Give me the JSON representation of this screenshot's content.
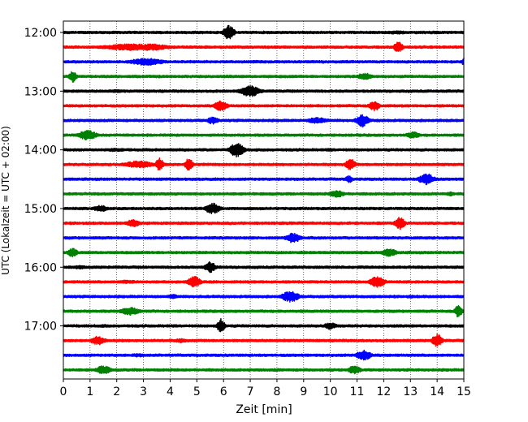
{
  "chart_data": {
    "type": "line",
    "title": "",
    "xlabel": "Zeit  [min]",
    "ylabel": "UTC (Lokalzeit = UTC + 02:00)",
    "xlim": [
      0,
      15
    ],
    "x_ticks": [
      "0",
      "1",
      "2",
      "3",
      "4",
      "5",
      "6",
      "7",
      "8",
      "9",
      "10",
      "11",
      "12",
      "13",
      "14",
      "15"
    ],
    "y_tick_labels": [
      "12:00",
      "13:00",
      "14:00",
      "15:00",
      "16:00",
      "17:00"
    ],
    "grid": "vertical dotted",
    "colors": [
      "#000000",
      "#ff0000",
      "#0000ff",
      "#008000"
    ],
    "traces": [
      {
        "start": "12:00",
        "bursts": [
          [
            6.2,
            0.22,
            1.0
          ],
          [
            12.5,
            0.5,
            0.25
          ],
          [
            13.9,
            0.5,
            0.2
          ]
        ]
      },
      {
        "start": "12:15",
        "bursts": [
          [
            2.5,
            1.2,
            0.45
          ],
          [
            3.3,
            0.8,
            0.45
          ],
          [
            12.55,
            0.18,
            0.75
          ]
        ]
      },
      {
        "start": "12:30",
        "bursts": [
          [
            3.1,
            0.7,
            0.5
          ],
          [
            7.2,
            0.5,
            0.2
          ],
          [
            15.0,
            0.08,
            0.6
          ]
        ]
      },
      {
        "start": "12:45",
        "bursts": [
          [
            0.35,
            0.15,
            0.8
          ],
          [
            11.3,
            0.3,
            0.5
          ]
        ]
      },
      {
        "start": "13:00",
        "bursts": [
          [
            7.0,
            0.4,
            0.75
          ],
          [
            2.0,
            0.6,
            0.2
          ]
        ]
      },
      {
        "start": "13:15",
        "bursts": [
          [
            5.9,
            0.25,
            0.75
          ],
          [
            11.65,
            0.2,
            0.75
          ]
        ]
      },
      {
        "start": "13:30",
        "bursts": [
          [
            5.6,
            0.25,
            0.5
          ],
          [
            9.5,
            0.4,
            0.45
          ],
          [
            11.2,
            0.25,
            0.9
          ]
        ]
      },
      {
        "start": "13:45",
        "bursts": [
          [
            0.9,
            0.35,
            0.7
          ],
          [
            13.1,
            0.3,
            0.45
          ]
        ]
      },
      {
        "start": "14:00",
        "bursts": [
          [
            6.5,
            0.28,
            1.0
          ],
          [
            2.0,
            0.5,
            0.25
          ],
          [
            10.0,
            0.4,
            0.2
          ]
        ]
      },
      {
        "start": "14:15",
        "bursts": [
          [
            2.8,
            0.6,
            0.5
          ],
          [
            3.6,
            0.15,
            0.9
          ],
          [
            4.7,
            0.15,
            0.9
          ],
          [
            10.75,
            0.2,
            0.8
          ]
        ]
      },
      {
        "start": "14:30",
        "bursts": [
          [
            10.7,
            0.15,
            0.5
          ],
          [
            13.6,
            0.3,
            0.8
          ]
        ]
      },
      {
        "start": "14:45",
        "bursts": [
          [
            10.25,
            0.3,
            0.5
          ],
          [
            14.5,
            0.2,
            0.3
          ]
        ]
      },
      {
        "start": "15:00",
        "bursts": [
          [
            1.4,
            0.3,
            0.45
          ],
          [
            5.6,
            0.3,
            0.75
          ]
        ]
      },
      {
        "start": "15:15",
        "bursts": [
          [
            2.6,
            0.3,
            0.5
          ],
          [
            12.6,
            0.2,
            0.85
          ]
        ]
      },
      {
        "start": "15:30",
        "bursts": [
          [
            8.6,
            0.3,
            0.7
          ],
          [
            2.0,
            0.4,
            0.15
          ]
        ]
      },
      {
        "start": "15:45",
        "bursts": [
          [
            0.35,
            0.2,
            0.6
          ],
          [
            12.2,
            0.3,
            0.55
          ],
          [
            9.0,
            0.4,
            0.2
          ]
        ]
      },
      {
        "start": "16:00",
        "bursts": [
          [
            5.5,
            0.22,
            0.75
          ],
          [
            0.6,
            0.3,
            0.25
          ]
        ]
      },
      {
        "start": "16:15",
        "bursts": [
          [
            4.9,
            0.25,
            0.8
          ],
          [
            11.75,
            0.3,
            0.8
          ],
          [
            2.4,
            0.5,
            0.25
          ]
        ]
      },
      {
        "start": "16:30",
        "bursts": [
          [
            8.5,
            0.35,
            0.75
          ],
          [
            4.1,
            0.25,
            0.3
          ],
          [
            13.0,
            0.3,
            0.2
          ]
        ]
      },
      {
        "start": "16:45",
        "bursts": [
          [
            2.5,
            0.4,
            0.55
          ],
          [
            14.8,
            0.15,
            0.85
          ],
          [
            6.0,
            0.5,
            0.15
          ]
        ]
      },
      {
        "start": "17:00",
        "bursts": [
          [
            5.9,
            0.15,
            1.0
          ],
          [
            10.0,
            0.25,
            0.5
          ],
          [
            1.5,
            0.5,
            0.2
          ]
        ]
      },
      {
        "start": "17:15",
        "bursts": [
          [
            1.3,
            0.3,
            0.6
          ],
          [
            14.0,
            0.2,
            0.9
          ],
          [
            4.4,
            0.3,
            0.3
          ]
        ]
      },
      {
        "start": "17:30",
        "bursts": [
          [
            11.25,
            0.3,
            0.7
          ],
          [
            2.8,
            0.3,
            0.25
          ]
        ]
      },
      {
        "start": "17:45",
        "bursts": [
          [
            1.5,
            0.3,
            0.6
          ],
          [
            10.9,
            0.25,
            0.6
          ],
          [
            8.0,
            0.4,
            0.2
          ]
        ]
      }
    ]
  }
}
